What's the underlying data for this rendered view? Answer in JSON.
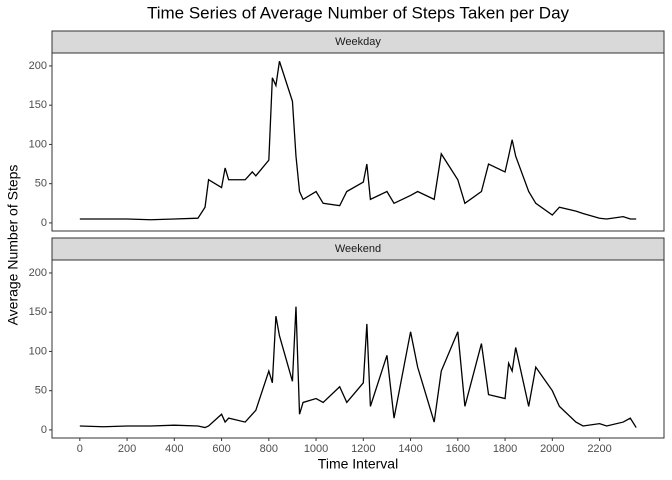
{
  "chart_data": {
    "type": "line",
    "title": "Time Series of Average Number of Steps Taken per Day",
    "xlabel": "Time Interval",
    "ylabel": "Average Number of Steps",
    "x": [
      0,
      100,
      200,
      300,
      400,
      500,
      530,
      545,
      600,
      615,
      630,
      700,
      730,
      745,
      800,
      815,
      830,
      845,
      900,
      915,
      930,
      945,
      1000,
      1030,
      1100,
      1130,
      1200,
      1215,
      1230,
      1300,
      1330,
      1400,
      1430,
      1500,
      1530,
      1600,
      1630,
      1700,
      1730,
      1800,
      1815,
      1830,
      1845,
      1900,
      1930,
      2000,
      2030,
      2100,
      2130,
      2200,
      2230,
      2300,
      2330,
      2355
    ],
    "series": [
      {
        "name": "Weekday",
        "color": "#000000",
        "values": [
          5,
          5,
          5,
          4,
          5,
          6,
          20,
          55,
          45,
          70,
          55,
          55,
          65,
          60,
          80,
          185,
          175,
          206,
          155,
          85,
          40,
          30,
          40,
          25,
          22,
          40,
          52,
          75,
          30,
          40,
          25,
          35,
          40,
          30,
          88,
          55,
          25,
          40,
          75,
          65,
          85,
          106,
          85,
          40,
          25,
          10,
          20,
          15,
          12,
          6,
          5,
          8,
          5,
          5
        ]
      },
      {
        "name": "Weekend",
        "color": "#000000",
        "values": [
          5,
          4,
          5,
          5,
          6,
          5,
          3,
          5,
          20,
          10,
          15,
          10,
          20,
          25,
          75,
          60,
          145,
          120,
          62,
          157,
          20,
          35,
          40,
          35,
          55,
          35,
          60,
          135,
          30,
          95,
          15,
          125,
          80,
          10,
          75,
          125,
          30,
          110,
          45,
          40,
          85,
          75,
          105,
          30,
          80,
          50,
          30,
          10,
          5,
          8,
          5,
          10,
          15,
          3
        ]
      }
    ],
    "xlim": [
      -117.75,
      2472.75
    ],
    "xticks": [
      0,
      200,
      400,
      600,
      800,
      1000,
      1200,
      1400,
      1600,
      1800,
      2000,
      2200
    ],
    "ylim": [
      -10.3,
      216.5
    ],
    "yticks": [
      0,
      50,
      100,
      150,
      200
    ]
  }
}
